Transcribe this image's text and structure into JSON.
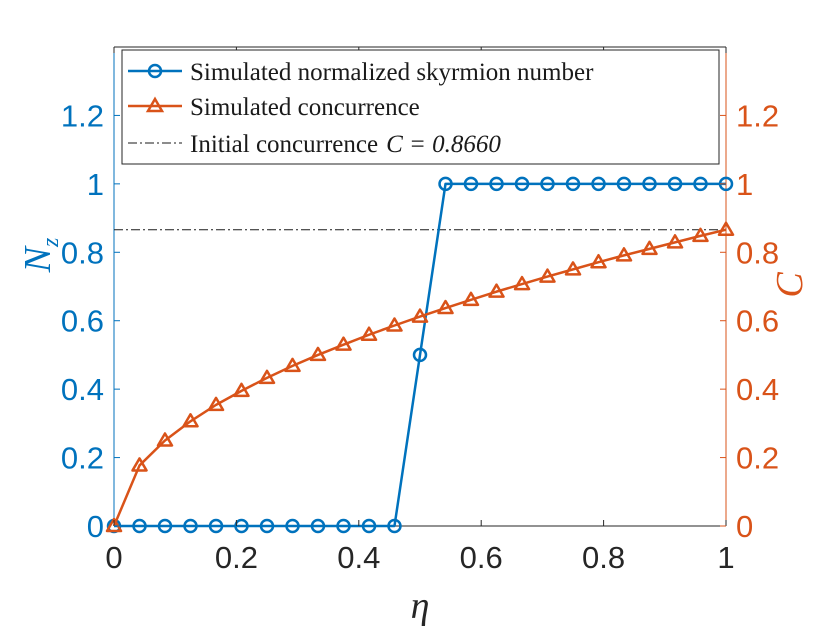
{
  "chart_data": {
    "type": "line",
    "xlabel": "η",
    "ylabel_left": "N",
    "ylabel_left_sub": "z",
    "ylabel_right": "C",
    "xlim": [
      0,
      1
    ],
    "ylim_left": [
      0,
      1.4
    ],
    "ylim_right": [
      0,
      1.4
    ],
    "x_ticks": [
      0,
      0.2,
      0.4,
      0.6,
      0.8,
      1
    ],
    "x_tick_labels": [
      "0",
      "0.2",
      "0.4",
      "0.6",
      "0.8",
      "1"
    ],
    "y_left_ticks": [
      0,
      0.2,
      0.4,
      0.6,
      0.8,
      1,
      1.2
    ],
    "y_left_tick_labels": [
      "0",
      "0.2",
      "0.4",
      "0.6",
      "0.8",
      "1",
      "1.2"
    ],
    "y_right_ticks": [
      0,
      0.2,
      0.4,
      0.6,
      0.8,
      1,
      1.2
    ],
    "y_right_tick_labels": [
      "0",
      "0.2",
      "0.4",
      "0.6",
      "0.8",
      "1",
      "1.2"
    ],
    "grid": false,
    "legend_position": "top",
    "series": [
      {
        "name": "Simulated normalized skyrmion number",
        "axis": "left",
        "color": "#0072BD",
        "marker": "circle",
        "x": [
          0,
          0.0417,
          0.0833,
          0.125,
          0.1667,
          0.2083,
          0.25,
          0.2917,
          0.3333,
          0.375,
          0.4167,
          0.4583,
          0.5,
          0.5417,
          0.5833,
          0.625,
          0.6667,
          0.7083,
          0.75,
          0.7917,
          0.8333,
          0.875,
          0.9167,
          0.9583,
          1
        ],
        "values": [
          0,
          0,
          0,
          0,
          0,
          0,
          0,
          0,
          0,
          0,
          0,
          0,
          0.5,
          1,
          1,
          1,
          1,
          1,
          1,
          1,
          1,
          1,
          1,
          1,
          1
        ]
      },
      {
        "name": "Simulated concurrence",
        "axis": "right",
        "color": "#D95319",
        "marker": "triangle",
        "x": [
          0,
          0.0417,
          0.0833,
          0.125,
          0.1667,
          0.2083,
          0.25,
          0.2917,
          0.3333,
          0.375,
          0.4167,
          0.4583,
          0.5,
          0.5417,
          0.5833,
          0.625,
          0.6667,
          0.7083,
          0.75,
          0.7917,
          0.8333,
          0.875,
          0.9167,
          0.9583,
          1
        ],
        "values": [
          0,
          0.177,
          0.25,
          0.306,
          0.354,
          0.395,
          0.433,
          0.468,
          0.5,
          0.53,
          0.559,
          0.586,
          0.612,
          0.637,
          0.661,
          0.685,
          0.707,
          0.729,
          0.75,
          0.771,
          0.791,
          0.81,
          0.829,
          0.848,
          0.866
        ]
      },
      {
        "name": "Initial concurrence",
        "legend_math": "C = 0.8660",
        "axis": "right",
        "color": "#1a1a1a",
        "marker": "none",
        "style": "dashdot",
        "value": 0.866
      }
    ]
  }
}
